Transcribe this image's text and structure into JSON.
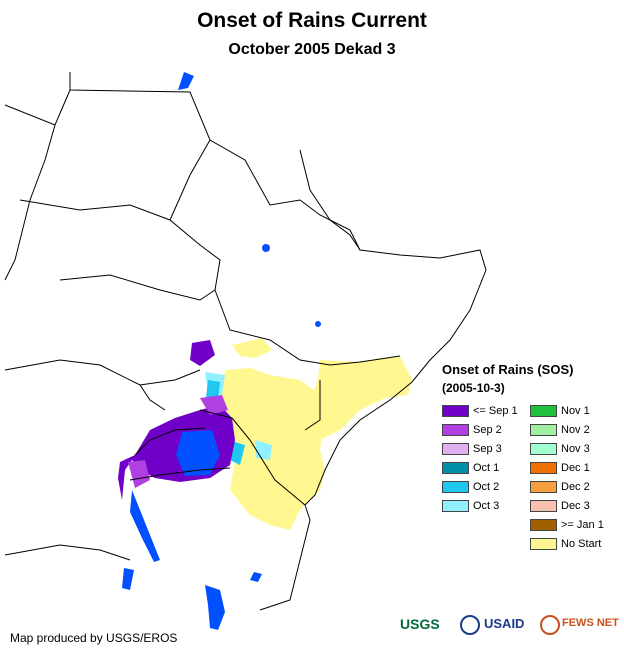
{
  "title": "Onset of Rains Current",
  "subtitle": "October 2005 Dekad 3",
  "legend": {
    "title": "Onset of Rains (SOS)",
    "subtitle": "(2005-10-3)",
    "items": [
      {
        "label": "<= Sep 1",
        "color": "#7000c8"
      },
      {
        "label": "Nov 1",
        "color": "#20c040"
      },
      {
        "label": "Sep 2",
        "color": "#b040e0"
      },
      {
        "label": "Nov 2",
        "color": "#a0f0a0"
      },
      {
        "label": "Sep 3",
        "color": "#e0b0f0"
      },
      {
        "label": "Nov 3",
        "color": "#a0ffd0"
      },
      {
        "label": "Oct 1",
        "color": "#0090a8"
      },
      {
        "label": "Dec 1",
        "color": "#f07000"
      },
      {
        "label": "Oct 2",
        "color": "#20c8f0"
      },
      {
        "label": "Dec 2",
        "color": "#f8a040"
      },
      {
        "label": "Oct 3",
        "color": "#90f0ff"
      },
      {
        "label": "Dec 3",
        "color": "#f8c0b0"
      },
      {
        "label": "",
        "color": ""
      },
      {
        "label": ">= Jan 1",
        "color": "#a06000"
      },
      {
        "label": "",
        "color": ""
      },
      {
        "label": "No Start",
        "color": "#fff890"
      }
    ]
  },
  "credit": "Map produced by USGS/EROS",
  "logos": {
    "usgs": "USGS",
    "usaid": "USAID",
    "fewsnet": "FEWS NET"
  },
  "colors": {
    "border": "#000000",
    "water": "#0050ff",
    "no_start": "#fff890",
    "sep1": "#7000c8",
    "sep2": "#b040e0",
    "oct2": "#20c8f0",
    "oct3": "#90f0ff"
  }
}
